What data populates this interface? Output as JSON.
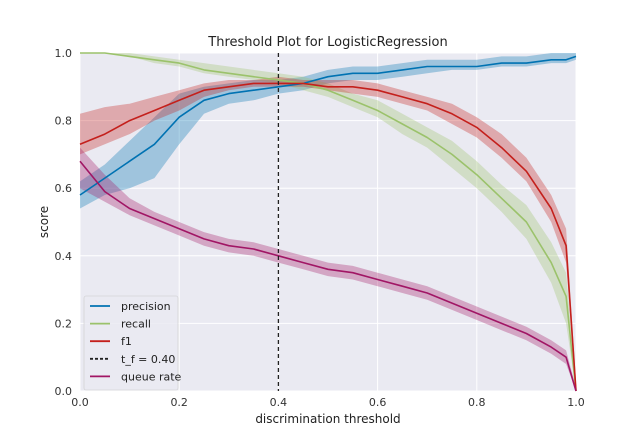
{
  "chart_data": {
    "type": "line",
    "title": "Threshold Plot for LogisticRegression",
    "xlabel": "discrimination threshold",
    "ylabel": "score",
    "xlim": [
      0.0,
      1.0
    ],
    "ylim": [
      0.0,
      1.0
    ],
    "xticks": [
      "0.0",
      "0.2",
      "0.4",
      "0.6",
      "0.8",
      "1.0"
    ],
    "yticks": [
      "0.0",
      "0.2",
      "0.4",
      "0.6",
      "0.8",
      "1.0"
    ],
    "grid": true,
    "legend_position": "lower-left",
    "threshold_line": {
      "x": 0.4,
      "label": "t_f = 0.40",
      "color": "#222222"
    },
    "x": [
      0.0,
      0.05,
      0.1,
      0.15,
      0.2,
      0.25,
      0.3,
      0.35,
      0.4,
      0.45,
      0.5,
      0.55,
      0.6,
      0.65,
      0.7,
      0.75,
      0.8,
      0.85,
      0.9,
      0.95,
      0.98,
      1.0
    ],
    "series": [
      {
        "name": "precision",
        "color": "#0072b2",
        "values": [
          0.58,
          0.63,
          0.68,
          0.73,
          0.81,
          0.86,
          0.88,
          0.89,
          0.9,
          0.91,
          0.93,
          0.94,
          0.94,
          0.95,
          0.96,
          0.96,
          0.96,
          0.97,
          0.97,
          0.98,
          0.98,
          0.99
        ],
        "lower": [
          0.54,
          0.58,
          0.6,
          0.63,
          0.73,
          0.82,
          0.85,
          0.86,
          0.88,
          0.89,
          0.91,
          0.92,
          0.92,
          0.93,
          0.94,
          0.95,
          0.95,
          0.96,
          0.96,
          0.97,
          0.97,
          0.98
        ],
        "upper": [
          0.62,
          0.67,
          0.74,
          0.81,
          0.88,
          0.9,
          0.91,
          0.92,
          0.92,
          0.93,
          0.95,
          0.96,
          0.96,
          0.97,
          0.98,
          0.98,
          0.98,
          0.99,
          0.99,
          1.0,
          1.0,
          1.0
        ]
      },
      {
        "name": "recall",
        "color": "#9bc26b",
        "values": [
          1.0,
          1.0,
          0.99,
          0.98,
          0.97,
          0.95,
          0.94,
          0.93,
          0.92,
          0.91,
          0.89,
          0.86,
          0.83,
          0.79,
          0.75,
          0.7,
          0.64,
          0.57,
          0.5,
          0.38,
          0.28,
          0.0
        ],
        "lower": [
          1.0,
          1.0,
          0.99,
          0.97,
          0.96,
          0.94,
          0.93,
          0.92,
          0.91,
          0.89,
          0.87,
          0.84,
          0.81,
          0.76,
          0.72,
          0.66,
          0.6,
          0.53,
          0.45,
          0.32,
          0.2,
          0.0
        ],
        "upper": [
          1.0,
          1.0,
          1.0,
          0.99,
          0.98,
          0.97,
          0.96,
          0.95,
          0.94,
          0.93,
          0.91,
          0.88,
          0.86,
          0.82,
          0.78,
          0.74,
          0.68,
          0.61,
          0.55,
          0.44,
          0.35,
          0.02
        ]
      },
      {
        "name": "f1",
        "color": "#c4201c",
        "values": [
          0.73,
          0.76,
          0.8,
          0.83,
          0.86,
          0.89,
          0.9,
          0.91,
          0.91,
          0.91,
          0.9,
          0.9,
          0.89,
          0.87,
          0.85,
          0.82,
          0.78,
          0.72,
          0.65,
          0.54,
          0.43,
          0.0
        ],
        "lower": [
          0.7,
          0.73,
          0.76,
          0.8,
          0.83,
          0.87,
          0.89,
          0.9,
          0.9,
          0.9,
          0.89,
          0.88,
          0.87,
          0.85,
          0.83,
          0.79,
          0.75,
          0.69,
          0.62,
          0.5,
          0.38,
          0.0
        ],
        "upper": [
          0.82,
          0.84,
          0.85,
          0.87,
          0.89,
          0.91,
          0.92,
          0.92,
          0.93,
          0.92,
          0.92,
          0.92,
          0.91,
          0.89,
          0.87,
          0.85,
          0.81,
          0.76,
          0.69,
          0.58,
          0.48,
          0.03
        ]
      },
      {
        "name": "queue rate",
        "color": "#a11665",
        "values": [
          0.68,
          0.59,
          0.54,
          0.51,
          0.48,
          0.45,
          0.43,
          0.42,
          0.4,
          0.38,
          0.36,
          0.35,
          0.33,
          0.31,
          0.29,
          0.26,
          0.23,
          0.2,
          0.17,
          0.13,
          0.1,
          0.0
        ],
        "lower": [
          0.6,
          0.56,
          0.52,
          0.49,
          0.46,
          0.43,
          0.41,
          0.4,
          0.38,
          0.36,
          0.34,
          0.33,
          0.31,
          0.29,
          0.27,
          0.24,
          0.21,
          0.18,
          0.15,
          0.11,
          0.08,
          0.0
        ],
        "upper": [
          0.72,
          0.64,
          0.57,
          0.53,
          0.5,
          0.47,
          0.45,
          0.44,
          0.42,
          0.4,
          0.38,
          0.37,
          0.35,
          0.33,
          0.31,
          0.28,
          0.25,
          0.22,
          0.19,
          0.15,
          0.12,
          0.01
        ]
      }
    ]
  }
}
